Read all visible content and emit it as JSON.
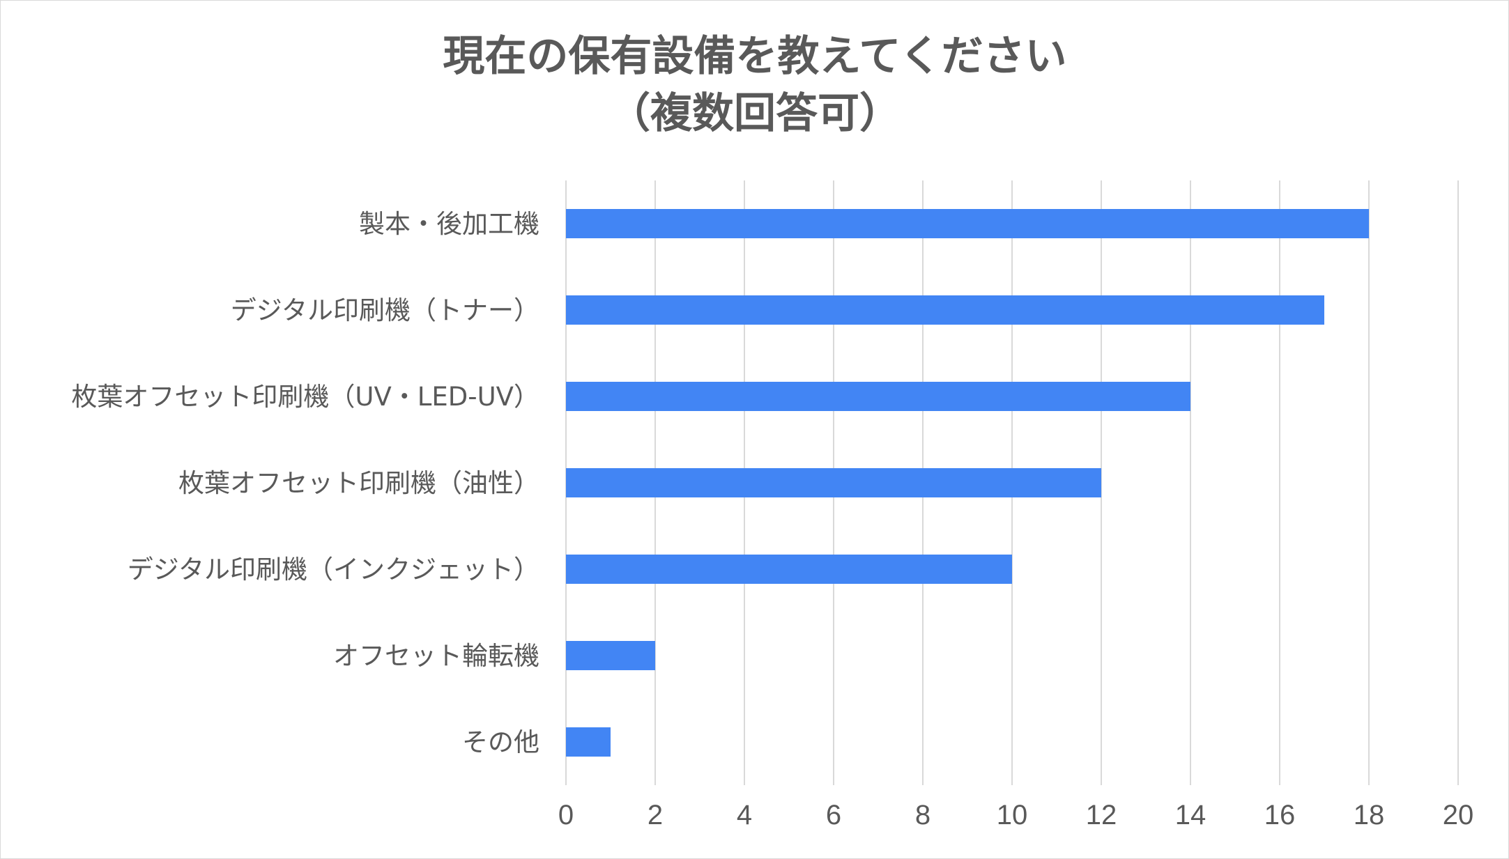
{
  "chart_data": {
    "type": "bar",
    "orientation": "horizontal",
    "title_lines": [
      "現在の保有設備を教えてください",
      "（複数回答可）"
    ],
    "categories": [
      "製本・後加工機",
      "デジタル印刷機（トナー）",
      "枚葉オフセット印刷機（UV・LED-UV）",
      "枚葉オフセット印刷機（油性）",
      "デジタル印刷機（インクジェット）",
      "オフセット輪転機",
      "その他"
    ],
    "values": [
      18,
      17,
      14,
      12,
      10,
      2,
      1
    ],
    "xlim": [
      0,
      20
    ],
    "xticks": [
      "0",
      "2",
      "4",
      "6",
      "8",
      "10",
      "12",
      "14",
      "16",
      "18",
      "20"
    ],
    "xlabel": "",
    "ylabel": "",
    "grid": "vertical",
    "legend": "none",
    "bar_color": "#4285f4"
  }
}
